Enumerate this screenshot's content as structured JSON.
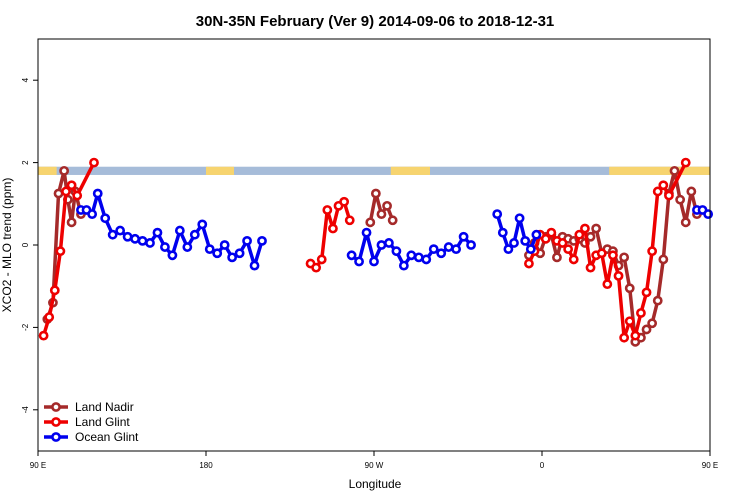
{
  "chart_data": {
    "type": "line",
    "title": "30N-35N February (Ver 9)   2014-09-06 to 2018-12-31",
    "xlabel": "Longitude",
    "ylabel": "XCO2 - MLO trend (ppm)",
    "xlim": [
      90,
      450
    ],
    "ylim": [
      -5,
      5
    ],
    "x_ticks": [
      {
        "value": 90,
        "label": "90 E"
      },
      {
        "value": 180,
        "label": "180"
      },
      {
        "value": 270,
        "label": "90 W"
      },
      {
        "value": 360,
        "label": "0"
      },
      {
        "value": 450,
        "label": "90 E"
      },
      {
        "value": 540,
        "label": "180"
      }
    ],
    "y_ticks": [
      -4,
      -2,
      0,
      2,
      4
    ],
    "legend_position": "bottom-left",
    "land_band": {
      "y_range": [
        1.7,
        1.9
      ],
      "land_color": "#f7d46f",
      "ocean_color": "#a6bcd9",
      "land_ranges": [
        [
          90,
          100
        ],
        [
          180,
          195
        ],
        [
          279,
          300
        ],
        [
          396,
          480
        ],
        [
          540,
          548
        ]
      ]
    },
    "series": [
      {
        "name": "Land Nadir",
        "color": "#a52a2a",
        "segments": [
          [
            [
              95,
              -1.8
            ],
            [
              98,
              -1.4
            ],
            [
              101,
              1.25
            ],
            [
              104,
              1.8
            ],
            [
              106,
              1.1
            ],
            [
              108,
              0.55
            ],
            [
              110,
              1.3
            ],
            [
              113,
              0.75
            ]
          ],
          [
            [
              268,
              0.55
            ],
            [
              271,
              1.25
            ],
            [
              274,
              0.75
            ],
            [
              277,
              0.95
            ],
            [
              280,
              0.6
            ]
          ],
          [
            [
              353,
              -0.25
            ],
            [
              356,
              0.05
            ],
            [
              359,
              -0.2
            ],
            [
              362,
              0.2
            ],
            [
              365,
              0.25
            ],
            [
              368,
              -0.3
            ],
            [
              371,
              0.2
            ],
            [
              374,
              0.15
            ],
            [
              377,
              0.1
            ],
            [
              380,
              0.15
            ],
            [
              383,
              0.05
            ],
            [
              386,
              0.2
            ],
            [
              389,
              0.4
            ],
            [
              392,
              -0.2
            ],
            [
              395,
              -0.1
            ],
            [
              398,
              -0.15
            ],
            [
              401,
              -0.5
            ],
            [
              404,
              -0.3
            ],
            [
              407,
              -1.05
            ],
            [
              410,
              -2.35
            ],
            [
              413,
              -2.25
            ],
            [
              416,
              -2.05
            ],
            [
              419,
              -1.9
            ],
            [
              422,
              -1.35
            ],
            [
              425,
              -0.35
            ],
            [
              428,
              1.25
            ],
            [
              431,
              1.8
            ],
            [
              434,
              1.1
            ],
            [
              437,
              0.55
            ],
            [
              440,
              1.3
            ],
            [
              443,
              0.75
            ]
          ]
        ]
      },
      {
        "name": "Land Glint",
        "color": "#ee0000",
        "segments": [
          [
            [
              93,
              -2.2
            ],
            [
              96,
              -1.75
            ],
            [
              99,
              -1.1
            ],
            [
              102,
              -0.15
            ],
            [
              105,
              1.3
            ],
            [
              108,
              1.45
            ],
            [
              111,
              1.2
            ],
            [
              120,
              2.0
            ]
          ],
          [
            [
              236,
              -0.45
            ],
            [
              239,
              -0.55
            ],
            [
              242,
              -0.35
            ],
            [
              245,
              0.85
            ],
            [
              248,
              0.4
            ],
            [
              251,
              0.95
            ],
            [
              254,
              1.05
            ],
            [
              257,
              0.6
            ]
          ],
          [
            [
              353,
              -0.45
            ],
            [
              356,
              -0.15
            ],
            [
              359,
              0.25
            ],
            [
              362,
              0.15
            ],
            [
              365,
              0.3
            ],
            [
              368,
              0.1
            ],
            [
              371,
              0.05
            ],
            [
              374,
              -0.1
            ],
            [
              377,
              -0.35
            ],
            [
              380,
              0.25
            ],
            [
              383,
              0.4
            ],
            [
              386,
              -0.55
            ],
            [
              389,
              -0.25
            ],
            [
              392,
              -0.2
            ],
            [
              395,
              -0.95
            ],
            [
              398,
              -0.25
            ],
            [
              401,
              -0.75
            ],
            [
              404,
              -2.25
            ],
            [
              407,
              -1.85
            ],
            [
              410,
              -2.2
            ],
            [
              413,
              -1.65
            ],
            [
              416,
              -1.15
            ],
            [
              419,
              -0.15
            ],
            [
              422,
              1.3
            ],
            [
              425,
              1.45
            ],
            [
              428,
              1.2
            ],
            [
              437,
              2.0
            ]
          ]
        ]
      },
      {
        "name": "Ocean Glint",
        "color": "#0000ee",
        "segments": [
          [
            [
              113,
              0.85
            ],
            [
              116,
              0.85
            ],
            [
              119,
              0.75
            ],
            [
              122,
              1.25
            ],
            [
              126,
              0.65
            ],
            [
              130,
              0.25
            ],
            [
              134,
              0.35
            ],
            [
              138,
              0.2
            ],
            [
              142,
              0.15
            ],
            [
              146,
              0.1
            ],
            [
              150,
              0.05
            ],
            [
              154,
              0.3
            ],
            [
              158,
              -0.05
            ],
            [
              162,
              -0.25
            ],
            [
              166,
              0.35
            ],
            [
              170,
              -0.05
            ],
            [
              174,
              0.25
            ],
            [
              178,
              0.5
            ],
            [
              182,
              -0.1
            ],
            [
              186,
              -0.2
            ],
            [
              190,
              0.0
            ],
            [
              194,
              -0.3
            ],
            [
              198,
              -0.2
            ],
            [
              202,
              0.1
            ],
            [
              206,
              -0.5
            ],
            [
              210,
              0.1
            ]
          ],
          [
            [
              258,
              -0.25
            ],
            [
              262,
              -0.4
            ],
            [
              266,
              0.3
            ],
            [
              270,
              -0.4
            ],
            [
              274,
              0.0
            ],
            [
              278,
              0.05
            ],
            [
              282,
              -0.15
            ],
            [
              286,
              -0.5
            ],
            [
              290,
              -0.25
            ],
            [
              294,
              -0.3
            ],
            [
              298,
              -0.35
            ],
            [
              302,
              -0.1
            ],
            [
              306,
              -0.2
            ],
            [
              310,
              -0.05
            ],
            [
              314,
              -0.1
            ],
            [
              318,
              0.2
            ],
            [
              322,
              0.0
            ]
          ],
          [
            [
              336,
              0.75
            ],
            [
              339,
              0.3
            ],
            [
              342,
              -0.1
            ],
            [
              345,
              0.05
            ],
            [
              348,
              0.65
            ],
            [
              351,
              0.1
            ],
            [
              354,
              -0.1
            ],
            [
              357,
              0.25
            ]
          ],
          [
            [
              443,
              0.85
            ],
            [
              446,
              0.85
            ],
            [
              449,
              0.75
            ],
            [
              452,
              1.25
            ],
            [
              456,
              0.65
            ],
            [
              460,
              0.25
            ],
            [
              464,
              0.35
            ],
            [
              468,
              0.2
            ],
            [
              472,
              0.15
            ],
            [
              476,
              0.1
            ],
            [
              480,
              0.0
            ],
            [
              484,
              0.3
            ]
          ]
        ]
      }
    ]
  }
}
